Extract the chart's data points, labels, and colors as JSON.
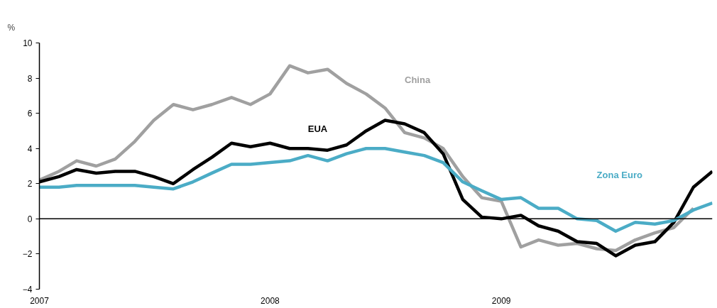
{
  "chart_data": {
    "type": "line",
    "ylabel": "%",
    "x": [
      "2007-01",
      "2007-02",
      "2007-03",
      "2007-04",
      "2007-05",
      "2007-06",
      "2007-07",
      "2007-08",
      "2007-09",
      "2007-10",
      "2007-11",
      "2007-12",
      "2008-01",
      "2008-02",
      "2008-03",
      "2008-04",
      "2008-05",
      "2008-06",
      "2008-07",
      "2008-08",
      "2008-09",
      "2008-10",
      "2008-11",
      "2008-12",
      "2009-01",
      "2009-02",
      "2009-03",
      "2009-04",
      "2009-05",
      "2009-06",
      "2009-07",
      "2009-08",
      "2009-09",
      "2009-10",
      "2009-11",
      "2009-12"
    ],
    "series": [
      {
        "name": "China",
        "color": "#a0a0a0",
        "values": [
          2.2,
          2.7,
          3.3,
          3.0,
          3.4,
          4.4,
          5.6,
          6.5,
          6.2,
          6.5,
          6.9,
          6.5,
          7.1,
          8.7,
          8.3,
          8.5,
          7.7,
          7.1,
          6.3,
          4.9,
          4.6,
          4.0,
          2.4,
          1.2,
          1.0,
          -1.6,
          -1.2,
          -1.5,
          -1.4,
          -1.7,
          -1.8,
          -1.2,
          -0.8,
          -0.5,
          0.6,
          null
        ]
      },
      {
        "name": "EUA",
        "color": "#000000",
        "values": [
          2.1,
          2.4,
          2.8,
          2.6,
          2.7,
          2.7,
          2.4,
          2.0,
          2.8,
          3.5,
          4.3,
          4.1,
          4.3,
          4.0,
          4.0,
          3.9,
          4.2,
          5.0,
          5.6,
          5.4,
          4.9,
          3.7,
          1.1,
          0.1,
          0.0,
          0.2,
          -0.4,
          -0.7,
          -1.3,
          -1.4,
          -2.1,
          -1.5,
          -1.3,
          -0.2,
          1.8,
          2.7
        ]
      },
      {
        "name": "Zona Euro",
        "color": "#4bacc6",
        "values": [
          1.8,
          1.8,
          1.9,
          1.9,
          1.9,
          1.9,
          1.8,
          1.7,
          2.1,
          2.6,
          3.1,
          3.1,
          3.2,
          3.3,
          3.6,
          3.3,
          3.7,
          4.0,
          4.0,
          3.8,
          3.6,
          3.2,
          2.1,
          1.6,
          1.1,
          1.2,
          0.6,
          0.6,
          0.0,
          -0.1,
          -0.7,
          -0.2,
          -0.3,
          -0.1,
          0.5,
          0.9
        ]
      }
    ],
    "xlim": [
      "2007-01",
      "2009-12"
    ],
    "xticks": [
      {
        "value": "2007-01",
        "label": "2007"
      },
      {
        "value": "2008-01",
        "label": "2008"
      },
      {
        "value": "2009-01",
        "label": "2009"
      }
    ],
    "ylim": [
      -4,
      10
    ],
    "yticks": [
      -4,
      -2,
      0,
      2,
      4,
      6,
      8,
      10
    ],
    "ref_lines": [
      {
        "axis": "y",
        "value": 0,
        "color": "#000000"
      }
    ],
    "grid": false,
    "marker": "none",
    "line_style": "solid"
  }
}
